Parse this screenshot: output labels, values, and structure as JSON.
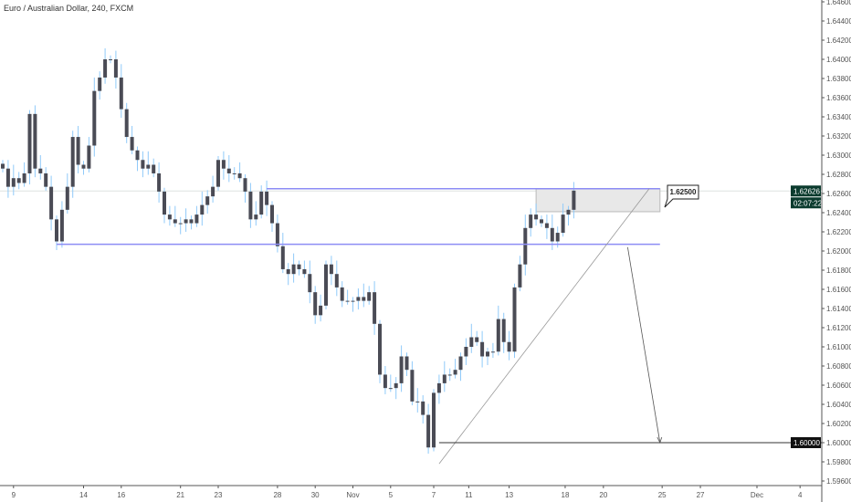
{
  "header": {
    "title": "Euro / Australian Dollar, 240, FXCM"
  },
  "chart_data": {
    "type": "candlestick",
    "title": "Euro / Australian Dollar, 240, FXCM",
    "ylim": [
      1.5955,
      1.6465
    ],
    "y_ticks": [
      "1.64600",
      "1.64400",
      "1.64200",
      "1.64000",
      "1.63800",
      "1.63600",
      "1.63400",
      "1.63200",
      "1.63000",
      "1.62800",
      "1.62600",
      "1.62400",
      "1.62200",
      "1.62000",
      "1.61800",
      "1.61600",
      "1.61400",
      "1.61200",
      "1.61000",
      "1.60800",
      "1.60600",
      "1.60400",
      "1.60200",
      "1.60000",
      "1.59800",
      "1.59600"
    ],
    "x_ticks": [
      {
        "label": "9",
        "bar": 2
      },
      {
        "label": "14",
        "bar": 15
      },
      {
        "label": "16",
        "bar": 22
      },
      {
        "label": "21",
        "bar": 33
      },
      {
        "label": "23",
        "bar": 40
      },
      {
        "label": "28",
        "bar": 51
      },
      {
        "label": "30",
        "bar": 58
      },
      {
        "label": "Nov",
        "bar": 65
      },
      {
        "label": "5",
        "bar": 72
      },
      {
        "label": "7",
        "bar": 80
      },
      {
        "label": "11",
        "bar": 86.5
      },
      {
        "label": "13",
        "bar": 94
      },
      {
        "label": "18",
        "bar": 104.4
      },
      {
        "label": "20",
        "bar": 111.5
      },
      {
        "label": "25",
        "bar": 122.4
      },
      {
        "label": "27",
        "bar": 129.5
      },
      {
        "label": "Dec",
        "bar": 140
      },
      {
        "label": "4",
        "bar": 148
      }
    ],
    "closes": [
      1.6286,
      1.6267,
      1.6276,
      1.6271,
      1.6281,
      1.6343,
      1.6286,
      1.6281,
      1.6267,
      1.6233,
      1.621,
      1.6243,
      1.6267,
      1.6319,
      1.629,
      1.6286,
      1.631,
      1.6367,
      1.6381,
      1.64,
      1.64,
      1.6381,
      1.6348,
      1.6319,
      1.6305,
      1.6295,
      1.6286,
      1.629,
      1.6281,
      1.6262,
      1.6238,
      1.6233,
      1.6229,
      1.6229,
      1.6233,
      1.6229,
      1.6238,
      1.6248,
      1.6257,
      1.6267,
      1.6295,
      1.6286,
      1.6281,
      1.6281,
      1.6276,
      1.6262,
      1.6233,
      1.6238,
      1.6262,
      1.6248,
      1.6229,
      1.6205,
      1.6181,
      1.6176,
      1.6186,
      1.6181,
      1.6176,
      1.6157,
      1.6133,
      1.6143,
      1.6186,
      1.6176,
      1.6162,
      1.6148,
      1.6148,
      1.6148,
      1.6152,
      1.6148,
      1.6157,
      1.6124,
      1.6071,
      1.6057,
      1.6057,
      1.6062,
      1.609,
      1.6076,
      1.6043,
      1.6043,
      1.6029,
      1.5995,
      1.6052,
      1.6062,
      1.6071,
      1.6071,
      1.6076,
      1.609,
      1.61,
      1.611,
      1.6105,
      1.609,
      1.6095,
      1.6095,
      1.6129,
      1.6105,
      1.6095,
      1.6162,
      1.6186,
      1.6224,
      1.6238,
      1.6233,
      1.6229,
      1.6224,
      1.621,
      1.6219,
      1.6238,
      1.6243,
      1.6263
    ],
    "current_price": {
      "label": "1.62626",
      "price": 1.62626,
      "countdown": "02:07:22"
    },
    "target": {
      "label": "1.60000",
      "price": 1.6
    },
    "callout": {
      "label": "1.62500"
    },
    "drawings": {
      "resistance": {
        "price": 1.6265,
        "from_bar": 49,
        "to_bar": 122
      },
      "support": {
        "price": 1.6207,
        "from_bar": 10,
        "to_bar": 122
      },
      "zone": {
        "top": 1.6265,
        "bottom": 1.6241,
        "from_bar": 99,
        "to_bar": 122
      },
      "trendline": {
        "from": [
          81,
          1.5978
        ],
        "to": [
          120,
          1.6265
        ]
      },
      "arrow": {
        "from": [
          116,
          1.6204
        ],
        "to": [
          122,
          1.6
        ]
      },
      "target_line": {
        "from_bar": 81
      }
    },
    "colors": {
      "body": "#4a4b55",
      "wick": "#90caf9",
      "level": "#8c8cf5",
      "label_bg": "#0b3b2e"
    }
  }
}
